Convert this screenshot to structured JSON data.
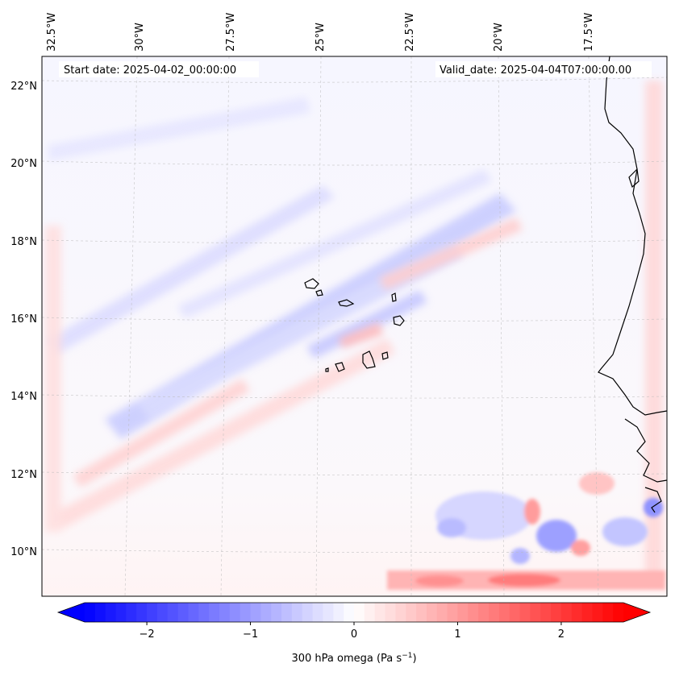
{
  "map": {
    "start_label": "Start date: 2025-04-02_00:00:00",
    "valid_label": "Valid_date: 2025-04-04T07:00:00.00",
    "lon_labels": [
      "32.5°W",
      "30°W",
      "27.5°W",
      "25°W",
      "22.5°W",
      "20°W",
      "17.5°W"
    ],
    "lat_labels": [
      "22°N",
      "20°N",
      "18°N",
      "16°N",
      "14°N",
      "12°N",
      "10°N"
    ],
    "variable": "300 hPa omega",
    "units": "Pa s",
    "units_exponent": "−1"
  },
  "colorbar": {
    "ticks": [
      "−2",
      "−1",
      "0",
      "1",
      "2"
    ],
    "min": -2.6,
    "max": 2.6,
    "tick_values": [
      -2,
      -1,
      0,
      1,
      2
    ],
    "low_color": "#0000ff",
    "mid_color": "#ffffff",
    "high_color": "#ff0000"
  }
}
